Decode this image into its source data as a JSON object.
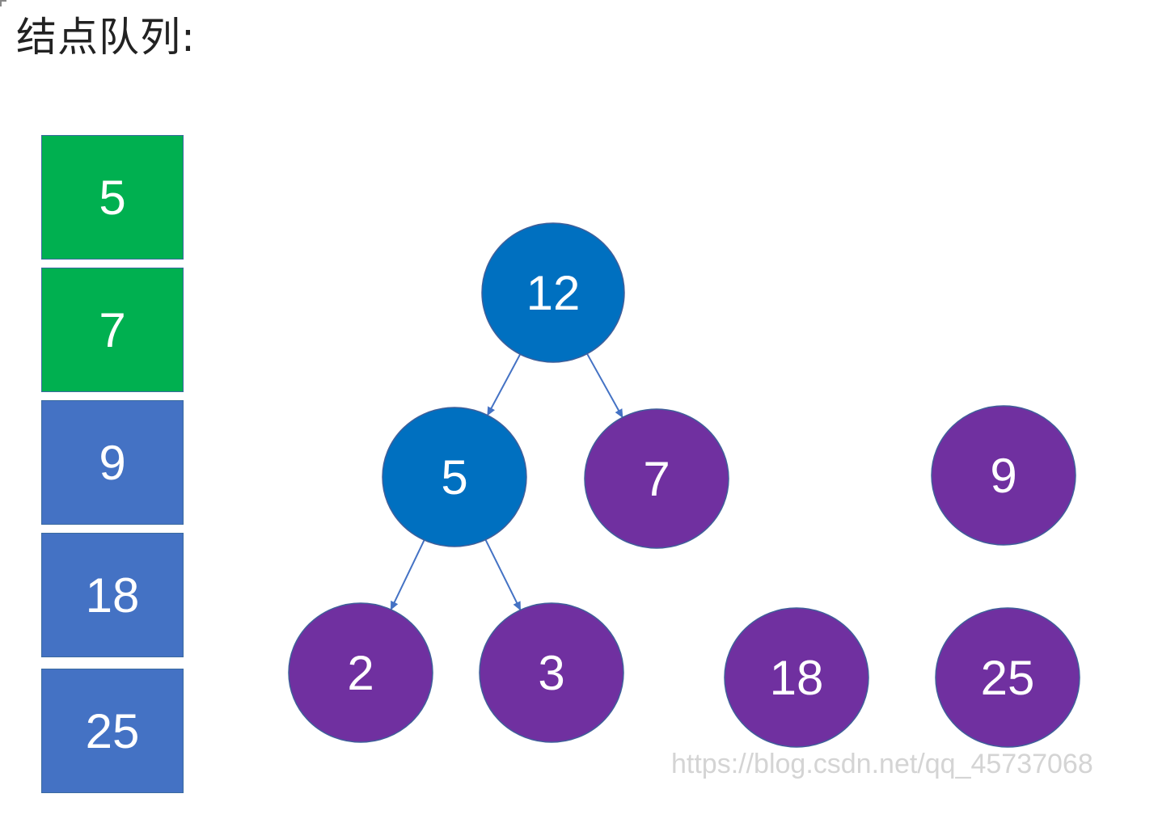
{
  "heading": "结点队列:",
  "colors": {
    "queue_done": "#00b050",
    "queue_pending": "#4472c4",
    "node_blue": "#0070c0",
    "node_purple": "#7030a0",
    "edge": "#4472c4"
  },
  "queue": [
    {
      "label": "5",
      "state": "done"
    },
    {
      "label": "7",
      "state": "done"
    },
    {
      "label": "9",
      "state": "pending"
    },
    {
      "label": "18",
      "state": "pending"
    },
    {
      "label": "25",
      "state": "pending"
    }
  ],
  "nodes": [
    {
      "id": "n12",
      "label": "12",
      "color": "blue"
    },
    {
      "id": "n5",
      "label": "5",
      "color": "blue"
    },
    {
      "id": "n7",
      "label": "7",
      "color": "purple"
    },
    {
      "id": "n2",
      "label": "2",
      "color": "purple"
    },
    {
      "id": "n3",
      "label": "3",
      "color": "purple"
    },
    {
      "id": "n9",
      "label": "9",
      "color": "purple"
    },
    {
      "id": "n18",
      "label": "18",
      "color": "purple"
    },
    {
      "id": "n25",
      "label": "25",
      "color": "purple"
    }
  ],
  "edges": [
    {
      "from": "n12",
      "to": "n5"
    },
    {
      "from": "n12",
      "to": "n7"
    },
    {
      "from": "n5",
      "to": "n2"
    },
    {
      "from": "n5",
      "to": "n3"
    }
  ],
  "watermark": "https://blog.csdn.net/qq_45737068"
}
